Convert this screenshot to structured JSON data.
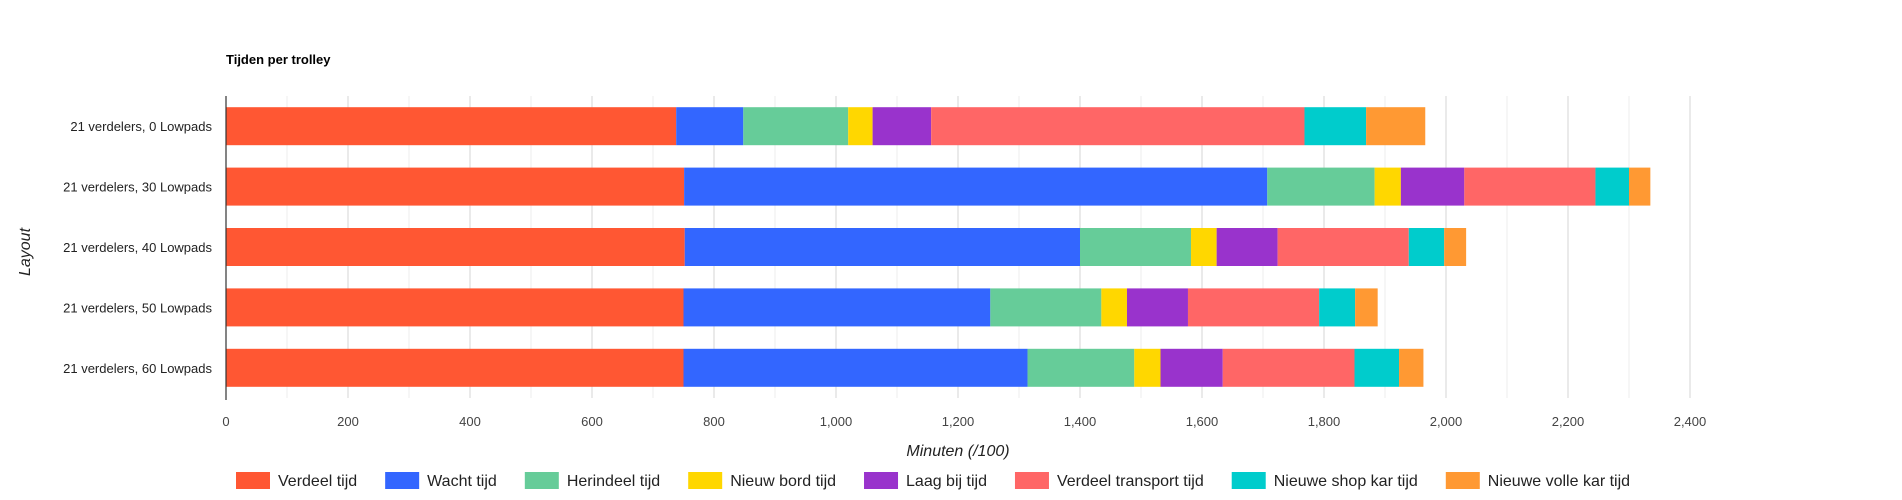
{
  "chart_data": {
    "type": "bar",
    "orientation": "horizontal",
    "stacked": true,
    "title": "Tijden per trolley",
    "xlabel": "Minuten (/100)",
    "ylabel": "Layout",
    "xlim": [
      0,
      2400
    ],
    "xticks": [
      0,
      200,
      400,
      600,
      800,
      1000,
      1200,
      1400,
      1600,
      1800,
      2000,
      2200,
      2400
    ],
    "xtick_labels": [
      "0",
      "200",
      "400",
      "600",
      "800",
      "1,000",
      "1,200",
      "1,400",
      "1,600",
      "1,800",
      "2,000",
      "2,200",
      "2,400"
    ],
    "grid": true,
    "legend_position": "bottom",
    "categories": [
      "21 verdelers, 0 Lowpads",
      "21 verdelers, 30 Lowpads",
      "21 verdelers, 40 Lowpads",
      "21 verdelers, 50 Lowpads",
      "21 verdelers, 60 Lowpads"
    ],
    "series": [
      {
        "name": "Verdeel tijd",
        "color": "#ff5733",
        "values": [
          738,
          751,
          752,
          750,
          750
        ]
      },
      {
        "name": "Wacht tijd",
        "color": "#3366ff",
        "values": [
          110,
          956,
          648,
          503,
          564
        ]
      },
      {
        "name": "Herindeel tijd",
        "color": "#66cc99",
        "values": [
          172,
          176,
          182,
          182,
          175
        ]
      },
      {
        "name": "Nieuw bord tijd",
        "color": "#ffd700",
        "values": [
          40,
          43,
          42,
          42,
          43
        ]
      },
      {
        "name": "Laag bij tijd",
        "color": "#9933cc",
        "values": [
          96,
          104,
          100,
          100,
          102
        ]
      },
      {
        "name": "Verdeel transport tijd",
        "color": "#ff6666",
        "values": [
          612,
          215,
          215,
          215,
          216
        ]
      },
      {
        "name": "Nieuwe shop kar tijd",
        "color": "#00cccc",
        "values": [
          101,
          55,
          58,
          59,
          73
        ]
      },
      {
        "name": "Nieuwe volle kar tijd",
        "color": "#ff9933",
        "values": [
          97,
          35,
          36,
          37,
          40
        ]
      }
    ]
  }
}
